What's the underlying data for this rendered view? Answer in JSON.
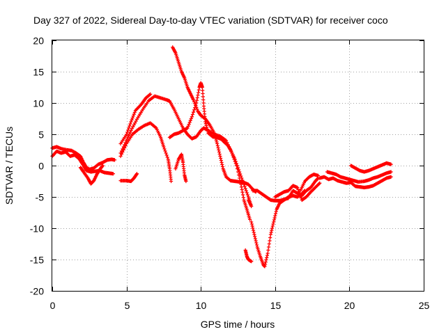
{
  "chart_data": {
    "type": "scatter",
    "title": "Day 327 of 2022, Sidereal Day-to-day VTEC variation (SDTVAR) for receiver coco",
    "xlabel": "GPS time / hours",
    "ylabel": "SDTVAR / TECUs",
    "xlim": [
      0,
      25
    ],
    "ylim": [
      -20,
      20
    ],
    "x_ticks": [
      0,
      5,
      10,
      15,
      20,
      25
    ],
    "y_ticks": [
      -20,
      -15,
      -10,
      -5,
      0,
      5,
      10,
      15,
      20
    ],
    "grid": true,
    "marker": "plus",
    "color": "#ff0000",
    "series": [
      {
        "name": "arc-1",
        "points": [
          [
            0.0,
            2.8
          ],
          [
            0.3,
            3.0
          ],
          [
            0.6,
            2.7
          ],
          [
            1.0,
            2.5
          ],
          [
            1.3,
            2.4
          ],
          [
            1.6,
            2.0
          ],
          [
            1.9,
            1.5
          ],
          [
            2.1,
            0.5
          ],
          [
            2.3,
            -0.3
          ],
          [
            2.5,
            -0.6
          ],
          [
            2.8,
            -0.4
          ],
          [
            3.1,
            0.2
          ],
          [
            3.4,
            0.5
          ],
          [
            3.7,
            0.9
          ],
          [
            4.0,
            1.0
          ],
          [
            4.2,
            0.9
          ]
        ]
      },
      {
        "name": "arc-2",
        "points": [
          [
            0.0,
            1.5
          ],
          [
            0.3,
            2.3
          ],
          [
            0.6,
            2.0
          ],
          [
            0.9,
            2.2
          ],
          [
            1.2,
            1.5
          ],
          [
            1.5,
            1.7
          ],
          [
            1.8,
            1.1
          ],
          [
            2.1,
            0.0
          ],
          [
            2.3,
            -0.8
          ],
          [
            2.6,
            -1.0
          ],
          [
            2.9,
            -0.9
          ],
          [
            3.2,
            -0.8
          ],
          [
            3.5,
            -1.1
          ],
          [
            3.8,
            -1.2
          ],
          [
            4.1,
            -1.3
          ]
        ]
      },
      {
        "name": "arc-3",
        "points": [
          [
            1.9,
            -0.3
          ],
          [
            2.1,
            -1.0
          ],
          [
            2.4,
            -2.0
          ],
          [
            2.6,
            -2.9
          ],
          [
            2.8,
            -2.4
          ],
          [
            3.0,
            -1.4
          ],
          [
            3.2,
            -0.6
          ],
          [
            3.4,
            0.0
          ]
        ]
      },
      {
        "name": "arc-4",
        "points": [
          [
            4.6,
            -2.4
          ],
          [
            5.0,
            -2.4
          ],
          [
            5.3,
            -2.5
          ],
          [
            5.5,
            -2.0
          ],
          [
            5.7,
            -1.3
          ]
        ]
      },
      {
        "name": "arc-5",
        "points": [
          [
            4.6,
            3.5
          ],
          [
            5.0,
            5.0
          ],
          [
            5.3,
            7.0
          ],
          [
            5.6,
            8.8
          ],
          [
            6.0,
            9.8
          ],
          [
            6.3,
            10.8
          ],
          [
            6.6,
            11.4
          ]
        ]
      },
      {
        "name": "arc-6",
        "points": [
          [
            4.6,
            2.0
          ],
          [
            5.0,
            4.0
          ],
          [
            5.3,
            5.6
          ],
          [
            5.7,
            7.4
          ],
          [
            6.1,
            9.0
          ],
          [
            6.5,
            10.4
          ],
          [
            6.9,
            11.1
          ],
          [
            7.3,
            10.8
          ],
          [
            7.7,
            10.5
          ],
          [
            7.9,
            10.3
          ],
          [
            8.2,
            9.0
          ],
          [
            8.5,
            7.5
          ],
          [
            8.8,
            6.0
          ],
          [
            9.1,
            5.0
          ],
          [
            9.4,
            4.3
          ],
          [
            9.7,
            4.6
          ],
          [
            10.0,
            5.6
          ],
          [
            10.2,
            6.0
          ],
          [
            10.5,
            5.6
          ],
          [
            10.9,
            5.0
          ],
          [
            11.3,
            4.7
          ],
          [
            11.7,
            4.0
          ],
          [
            12.1,
            2.0
          ],
          [
            12.4,
            0.0
          ],
          [
            12.7,
            -3.0
          ],
          [
            12.9,
            -5.5
          ],
          [
            13.1,
            -7.0
          ],
          [
            13.3,
            -8.6
          ]
        ]
      },
      {
        "name": "arc-7",
        "points": [
          [
            4.6,
            1.5
          ],
          [
            5.0,
            3.5
          ],
          [
            5.4,
            5.0
          ],
          [
            5.8,
            5.8
          ],
          [
            6.2,
            6.4
          ],
          [
            6.6,
            6.8
          ],
          [
            7.0,
            6.0
          ],
          [
            7.3,
            4.5
          ],
          [
            7.5,
            3.0
          ],
          [
            7.8,
            1.0
          ],
          [
            7.9,
            -0.5
          ],
          [
            8.0,
            -2.5
          ]
        ]
      },
      {
        "name": "arc-8",
        "points": [
          [
            7.9,
            4.5
          ],
          [
            8.2,
            5.0
          ],
          [
            8.5,
            5.2
          ],
          [
            8.8,
            5.6
          ],
          [
            9.1,
            6.0
          ],
          [
            9.4,
            7.8
          ],
          [
            9.7,
            10.0
          ],
          [
            9.9,
            12.5
          ],
          [
            10.0,
            13.2
          ],
          [
            10.1,
            12.5
          ],
          [
            10.2,
            9.5
          ],
          [
            10.3,
            7.0
          ],
          [
            10.5,
            5.2
          ],
          [
            10.8,
            4.6
          ],
          [
            11.1,
            4.5
          ],
          [
            11.4,
            4.2
          ],
          [
            11.6,
            3.7
          ],
          [
            11.8,
            3.3
          ],
          [
            12.0,
            2.5
          ],
          [
            12.3,
            1.0
          ],
          [
            12.6,
            -1.0
          ],
          [
            12.9,
            -3.0
          ],
          [
            13.2,
            -5.0
          ],
          [
            13.4,
            -6.5
          ],
          [
            13.2,
            -5.5
          ]
        ]
      },
      {
        "name": "arc-9",
        "points": [
          [
            8.1,
            18.9
          ],
          [
            8.3,
            18.0
          ],
          [
            8.5,
            16.5
          ],
          [
            8.7,
            15.0
          ],
          [
            8.9,
            14.0
          ],
          [
            9.1,
            12.5
          ],
          [
            9.3,
            11.5
          ],
          [
            9.5,
            10.5
          ],
          [
            9.8,
            8.7
          ],
          [
            10.0,
            8.0
          ],
          [
            10.3,
            7.5
          ],
          [
            10.6,
            6.5
          ],
          [
            10.9,
            5.2
          ],
          [
            11.1,
            3.5
          ],
          [
            11.3,
            1.5
          ],
          [
            11.5,
            -0.5
          ],
          [
            11.7,
            -1.8
          ],
          [
            12.0,
            -2.4
          ],
          [
            12.3,
            -2.5
          ],
          [
            12.6,
            -2.6
          ],
          [
            12.9,
            -2.7
          ],
          [
            13.2,
            -3.0
          ],
          [
            13.5,
            -3.8
          ],
          [
            13.7,
            -4.2
          ]
        ]
      },
      {
        "name": "arc-10",
        "points": [
          [
            8.3,
            -0.5
          ],
          [
            8.5,
            1.0
          ],
          [
            8.7,
            1.8
          ],
          [
            8.8,
            0.5
          ],
          [
            8.9,
            -1.5
          ],
          [
            9.0,
            -2.5
          ]
        ]
      },
      {
        "name": "arc-11",
        "points": [
          [
            13.0,
            -13.5
          ],
          [
            13.1,
            -14.5
          ],
          [
            13.2,
            -15.0
          ],
          [
            13.4,
            -15.3
          ]
        ]
      },
      {
        "name": "arc-12",
        "points": [
          [
            13.4,
            -9.0
          ],
          [
            13.6,
            -11.0
          ],
          [
            13.8,
            -13.0
          ],
          [
            14.0,
            -14.5
          ],
          [
            14.2,
            -15.8
          ],
          [
            14.3,
            -16.1
          ],
          [
            14.5,
            -14.0
          ],
          [
            14.7,
            -11.0
          ],
          [
            14.9,
            -9.0
          ],
          [
            15.1,
            -7.0
          ],
          [
            15.3,
            -6.0
          ],
          [
            15.6,
            -5.5
          ],
          [
            15.9,
            -5.0
          ],
          [
            16.2,
            -4.8
          ],
          [
            16.5,
            -5.0
          ],
          [
            16.8,
            -4.5
          ],
          [
            17.0,
            -4.0
          ]
        ]
      },
      {
        "name": "arc-13",
        "points": [
          [
            13.5,
            -4.0
          ],
          [
            13.8,
            -4.0
          ],
          [
            14.1,
            -4.5
          ],
          [
            14.4,
            -5.0
          ],
          [
            14.7,
            -5.5
          ],
          [
            15.0,
            -5.6
          ],
          [
            15.3,
            -5.6
          ],
          [
            15.6,
            -5.4
          ],
          [
            15.9,
            -5.2
          ],
          [
            16.2,
            -4.0
          ],
          [
            16.5,
            -4.4
          ],
          [
            16.8,
            -4.8
          ],
          [
            17.1,
            -4.0
          ],
          [
            17.4,
            -3.5
          ],
          [
            17.7,
            -2.5
          ],
          [
            17.9,
            -2.0
          ]
        ]
      },
      {
        "name": "arc-14",
        "points": [
          [
            15.0,
            -5.0
          ],
          [
            15.3,
            -4.6
          ],
          [
            15.6,
            -4.2
          ],
          [
            15.9,
            -4.0
          ],
          [
            16.2,
            -3.2
          ],
          [
            16.5,
            -3.5
          ],
          [
            16.8,
            -5.5
          ],
          [
            17.1,
            -5.0
          ],
          [
            17.4,
            -4.2
          ],
          [
            17.7,
            -3.5
          ],
          [
            18.0,
            -2.8
          ]
        ]
      },
      {
        "name": "arc-15",
        "points": [
          [
            16.7,
            -4.0
          ],
          [
            17.0,
            -2.5
          ],
          [
            17.3,
            -1.8
          ],
          [
            17.6,
            -1.4
          ],
          [
            17.9,
            -1.6
          ]
        ]
      },
      {
        "name": "arc-16",
        "points": [
          [
            18.5,
            -1.0
          ],
          [
            18.8,
            -1.2
          ],
          [
            19.1,
            -1.4
          ],
          [
            19.4,
            -1.8
          ],
          [
            19.7,
            -2.0
          ],
          [
            20.0,
            -2.2
          ],
          [
            20.3,
            -2.4
          ],
          [
            20.6,
            -2.6
          ],
          [
            21.0,
            -2.5
          ],
          [
            21.3,
            -2.3
          ],
          [
            21.6,
            -2.0
          ],
          [
            21.9,
            -1.8
          ],
          [
            22.2,
            -1.5
          ],
          [
            22.5,
            -1.2
          ],
          [
            22.8,
            -1.0
          ]
        ]
      },
      {
        "name": "arc-17",
        "points": [
          [
            18.0,
            -2.0
          ],
          [
            18.3,
            -1.8
          ],
          [
            18.6,
            -2.2
          ],
          [
            18.9,
            -2.0
          ],
          [
            19.2,
            -2.4
          ],
          [
            19.5,
            -2.6
          ],
          [
            19.8,
            -2.8
          ],
          [
            20.1,
            -2.7
          ],
          [
            20.4,
            -3.3
          ],
          [
            20.7,
            -3.4
          ],
          [
            21.0,
            -3.5
          ],
          [
            21.3,
            -3.4
          ],
          [
            21.6,
            -3.2
          ],
          [
            21.9,
            -2.8
          ],
          [
            22.2,
            -2.4
          ],
          [
            22.5,
            -2.0
          ],
          [
            22.8,
            -1.8
          ]
        ]
      },
      {
        "name": "arc-18",
        "points": [
          [
            20.1,
            0.0
          ],
          [
            20.4,
            -0.4
          ],
          [
            20.7,
            -0.8
          ],
          [
            21.0,
            -1.0
          ],
          [
            21.3,
            -0.8
          ],
          [
            21.6,
            -0.5
          ],
          [
            21.9,
            -0.2
          ],
          [
            22.2,
            0.1
          ],
          [
            22.5,
            0.4
          ],
          [
            22.8,
            0.2
          ]
        ]
      }
    ]
  }
}
